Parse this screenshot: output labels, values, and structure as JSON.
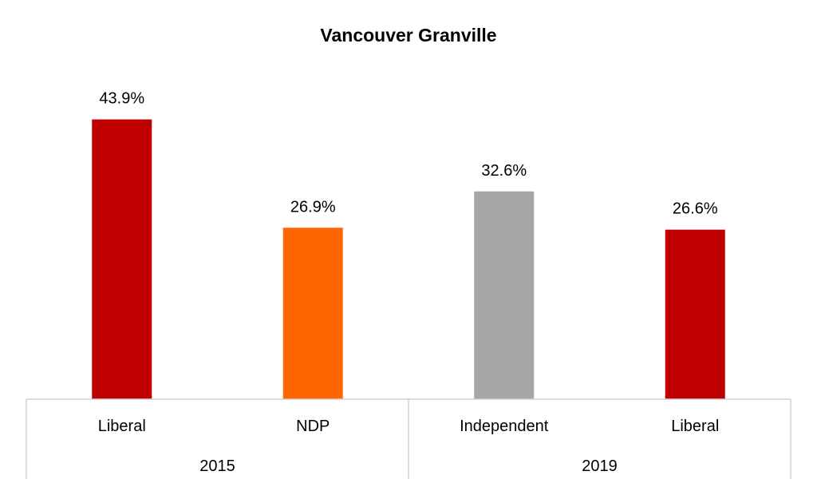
{
  "chart_data": {
    "type": "bar",
    "title": "Vancouver Granville",
    "xlabel": "",
    "ylabel": "",
    "ylim": [
      0,
      50
    ],
    "grid": false,
    "legend": "none",
    "value_suffix": "%",
    "groups": [
      {
        "label": "2015",
        "bars": [
          {
            "category": "Liberal",
            "value": 43.9,
            "value_label": "43.9%",
            "color": "#C00000"
          },
          {
            "category": "NDP",
            "value": 26.9,
            "value_label": "26.9%",
            "color": "#FF6600"
          }
        ]
      },
      {
        "label": "2019",
        "bars": [
          {
            "category": "Independent",
            "value": 32.6,
            "value_label": "32.6%",
            "color": "#A6A6A6"
          },
          {
            "category": "Liberal",
            "value": 26.6,
            "value_label": "26.6%",
            "color": "#C00000"
          }
        ]
      }
    ]
  }
}
